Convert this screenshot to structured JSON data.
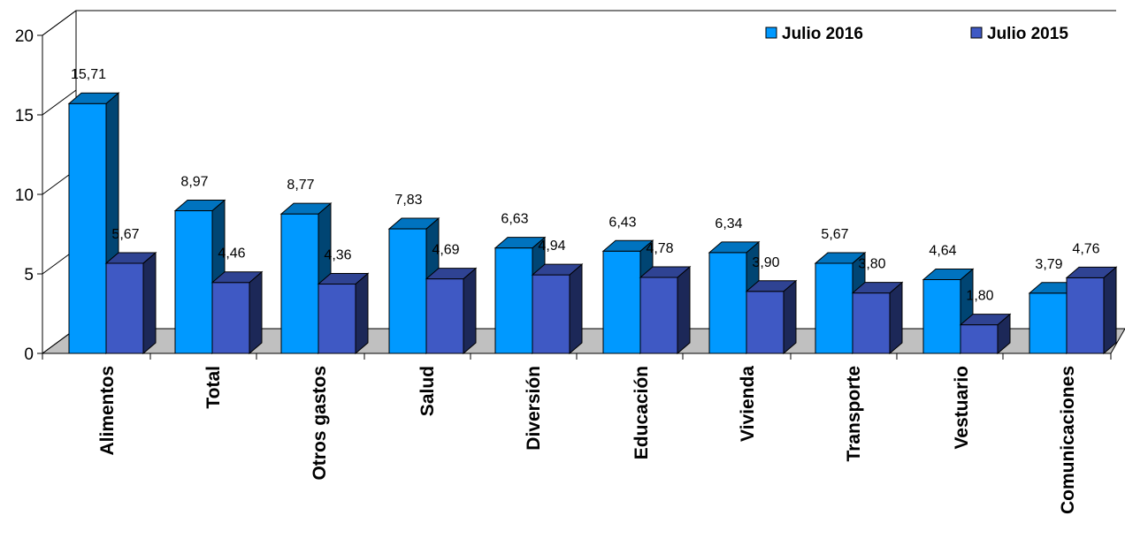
{
  "chart_data": {
    "type": "bar",
    "title": "",
    "xlabel": "",
    "ylabel": "",
    "ylim": [
      0,
      20
    ],
    "yticks": [
      0,
      5,
      10,
      15,
      20
    ],
    "grid": false,
    "legend_position": "top-right",
    "categories": [
      "Alimentos",
      "Total",
      "Otros gastos",
      "Salud",
      "Diversión",
      "Educación",
      "Vivienda",
      "Transporte",
      "Vestuario",
      "Comunicaciones"
    ],
    "series": [
      {
        "name": "Julio 2016",
        "color": "#0099ff",
        "values": [
          15.71,
          8.97,
          8.77,
          7.83,
          6.63,
          6.43,
          6.34,
          5.67,
          4.64,
          3.79
        ],
        "labels": [
          "15,71",
          "8,97",
          "8,77",
          "7,83",
          "6,63",
          "6,43",
          "6,34",
          "5,67",
          "4,64",
          "3,79"
        ]
      },
      {
        "name": "Julio 2015",
        "color": "#3f59c4",
        "values": [
          5.67,
          4.46,
          4.36,
          4.69,
          4.94,
          4.78,
          3.9,
          3.8,
          1.8,
          4.76
        ],
        "labels": [
          "5,67",
          "4,46",
          "4,36",
          "4,69",
          "4,94",
          "4,78",
          "3,90",
          "3,80",
          "1,80",
          "4,76"
        ]
      }
    ]
  }
}
